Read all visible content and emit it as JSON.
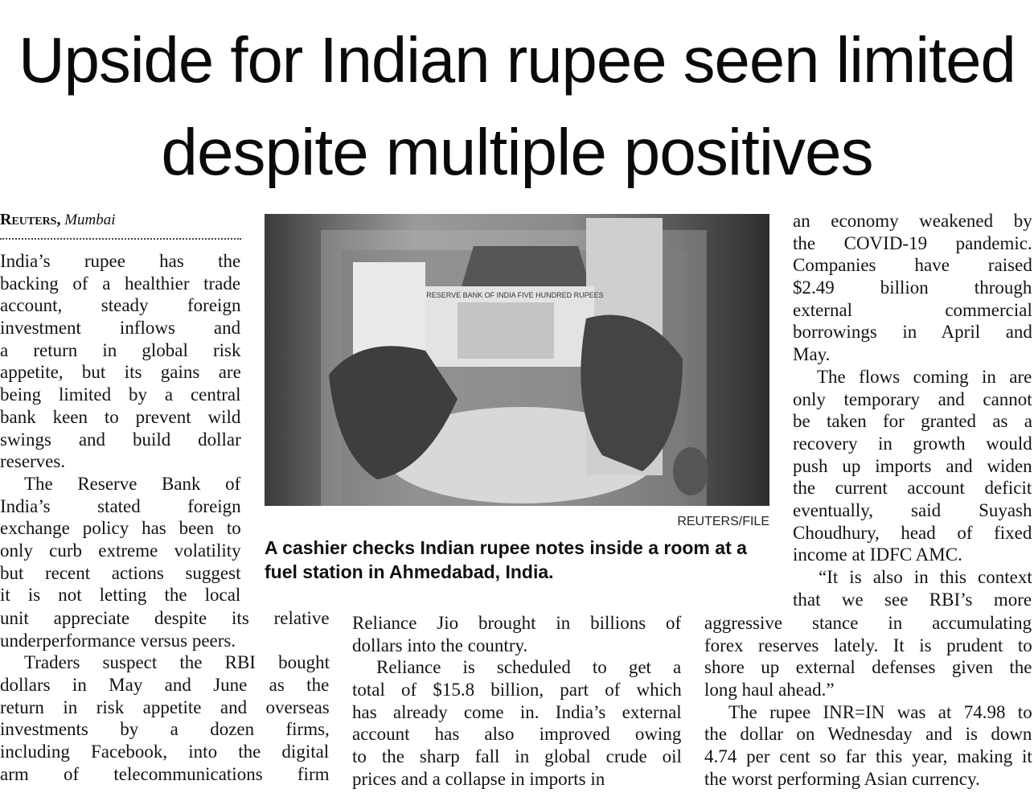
{
  "headline": {
    "lines": [
      "Upside for Indian rupee seen limited",
      "despite multiple positives"
    ]
  },
  "dateline": {
    "agency": "Reuters,",
    "city": "Mumbai"
  },
  "photo": {
    "credit": "REUTERS/FILE",
    "caption_lines": [
      "A cashier checks Indian rupee notes inside a room at a",
      "fuel station in Ahmedabad, India."
    ],
    "note_text": "₹500  RESERVE BANK OF INDIA  FIVE HUNDRED RUPEES"
  },
  "columns": {
    "left_narrow": [
      "India’s rupee has the",
      "backing of a healthier trade",
      "account, steady foreign",
      "investment inflows and",
      "a return in global risk",
      "appetite, but its gains are",
      "being limited by a central",
      "bank keen to prevent wild",
      "swings and build dollar",
      "reserves.",
      "The Reserve Bank of",
      "India’s stated foreign",
      "exchange policy has been to",
      "only curb extreme volatility",
      "but recent actions suggest",
      "it is not letting the local"
    ],
    "left_wide": [
      "unit appreciate despite its relative",
      "underperformance versus peers.",
      "Traders suspect the RBI bought",
      "dollars in May and June as the",
      "return in risk appetite and overseas",
      "investments by a dozen firms,",
      "including Facebook, into the digital",
      "arm of telecommunications firm"
    ],
    "middle": [
      "Reliance Jio brought in billions of",
      "dollars into the country.",
      "Reliance is scheduled to get a",
      "total of $15.8 billion, part of which",
      "has already come in. India’s external",
      "account has also improved owing",
      "to the sharp fall in global crude oil",
      "prices and a collapse in imports in"
    ],
    "right_narrow": [
      "an economy weakened by",
      "the COVID-19 pandemic.",
      "Companies have raised",
      "$2.49 billion through",
      "external commercial",
      "borrowings in April and",
      "May.",
      "The flows coming in are",
      "only temporary and cannot",
      "be taken for granted as a",
      "recovery in growth would",
      "push up imports and widen",
      "the current account deficit",
      "eventually, said Suyash",
      "Choudhury, head of fixed",
      "income at IDFC AMC.",
      "“It is also in this context",
      "that we see RBI’s more"
    ],
    "right_wide": [
      "aggressive stance in accumulating",
      "forex reserves lately. It is prudent to",
      "shore up external defenses given the",
      "long haul ahead.”",
      "The rupee INR=IN was at 74.98 to",
      "the dollar on Wednesday and is down",
      "4.74 per cent so far this year, making it",
      "the worst performing Asian currency."
    ]
  }
}
